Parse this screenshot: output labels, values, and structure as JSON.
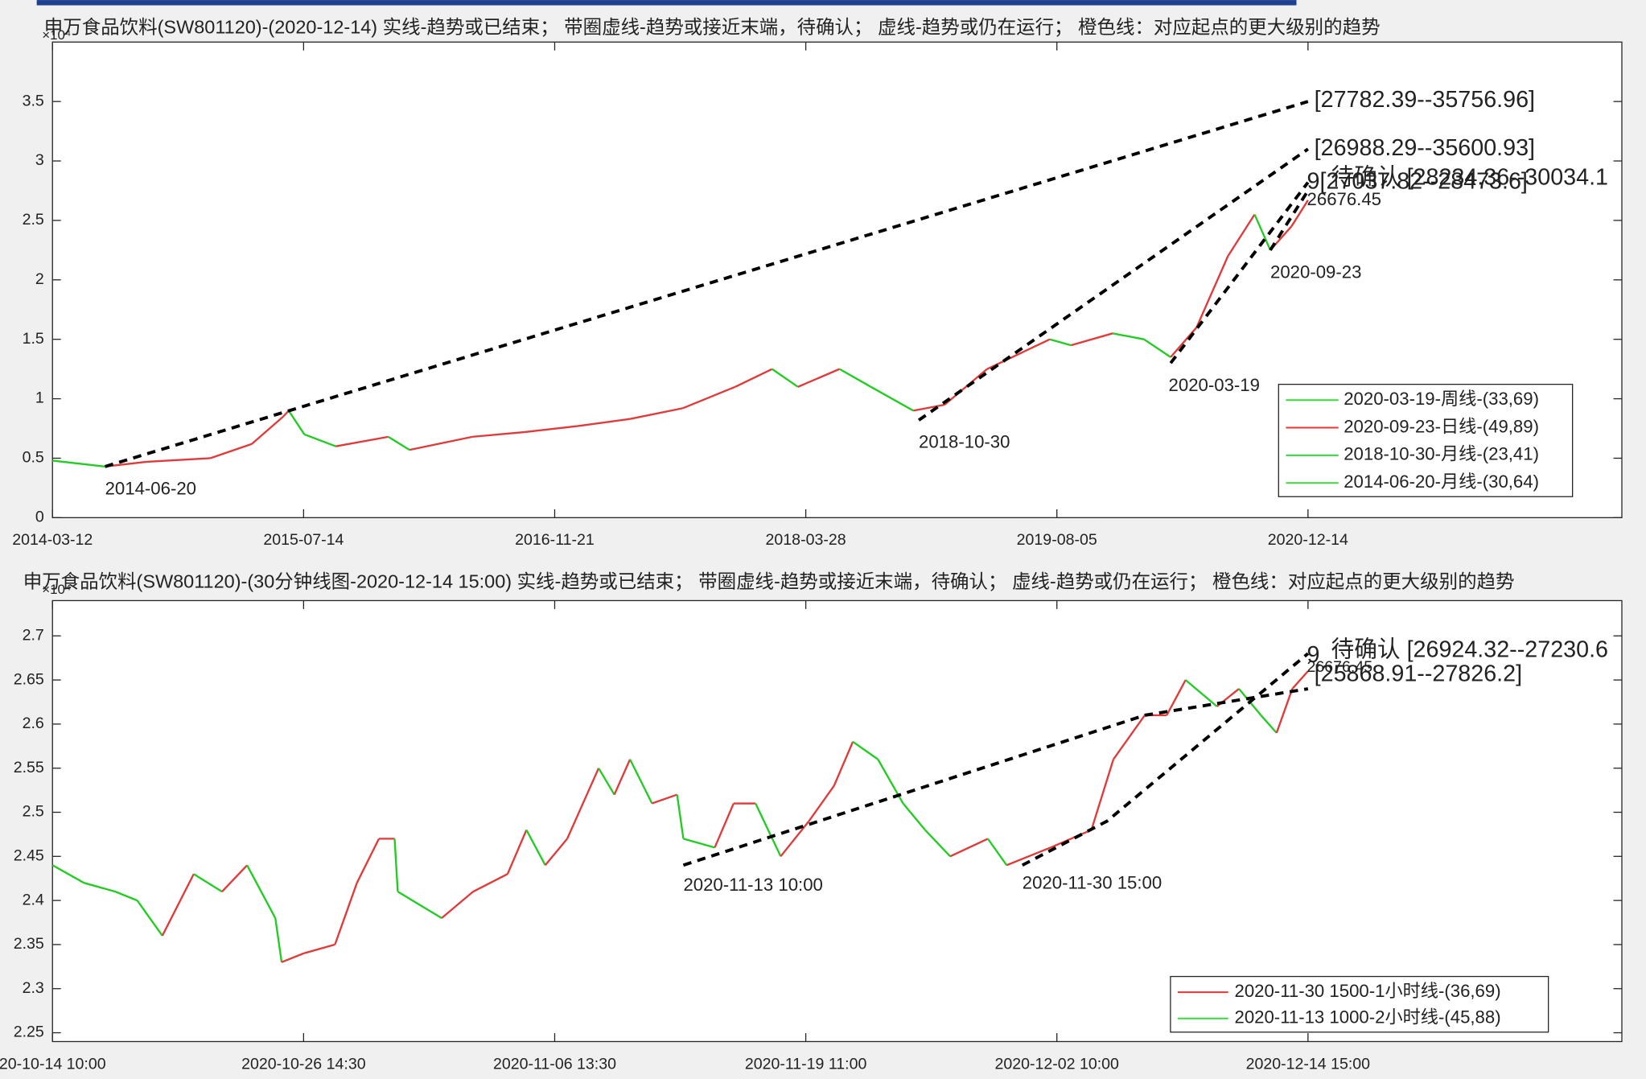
{
  "chart_data": [
    {
      "type": "line",
      "title": "申万食品饮料(SW801120)-(2020-12-14)  实线-趋势或已结束；  带圈虚线-趋势或接近末端，待确认；  虚线-趋势或仍在运行；  橙色线：对应起点的更大级别的趋势",
      "y_multiplier": "×10⁴",
      "color": "#e03a3a",
      "x": [
        0,
        67,
        120,
        201,
        254,
        294,
        301,
        321,
        361,
        428,
        455,
        535,
        602,
        669,
        736,
        803,
        870,
        917,
        950,
        1003,
        1043,
        1097,
        1137,
        1191,
        1271,
        1298,
        1351,
        1391,
        1425,
        1458,
        1498,
        1532,
        1552,
        1579,
        1600
      ],
      "values": [
        0.48,
        0.43,
        0.47,
        0.5,
        0.62,
        0.85,
        0.9,
        0.7,
        0.6,
        0.68,
        0.57,
        0.68,
        0.72,
        0.77,
        0.83,
        0.92,
        1.1,
        1.25,
        1.1,
        1.25,
        1.1,
        0.9,
        0.95,
        1.25,
        1.5,
        1.45,
        1.55,
        1.5,
        1.35,
        1.6,
        2.2,
        2.55,
        2.25,
        2.45,
        2.67
      ],
      "xlim": [
        0,
        2000
      ],
      "xticks": [
        {
          "value": 0,
          "label": "2014-03-12"
        },
        {
          "value": 320,
          "label": "2015-07-14"
        },
        {
          "value": 640,
          "label": "2016-11-21"
        },
        {
          "value": 960,
          "label": "2018-03-28"
        },
        {
          "value": 1280,
          "label": "2019-08-05"
        },
        {
          "value": 1600,
          "label": "2020-12-14"
        }
      ],
      "ylim": [
        0,
        4
      ],
      "yticks": [
        0,
        0.5,
        1,
        1.5,
        2,
        2.5,
        3,
        3.5
      ],
      "trend_lines": [
        {
          "name": "2020-03-19-周线-(33,69)",
          "color": "#33dd33",
          "label": "2020-03-19",
          "x": [
            1425,
            1600
          ],
          "y": [
            1.3,
            2.82
          ]
        },
        {
          "name": "2020-09-23-日线-(49,89)",
          "color": "#ee3333",
          "label": "2020-09-23",
          "x": [
            1552,
            1600
          ],
          "y": [
            2.25,
            2.75
          ]
        },
        {
          "name": "2018-10-30-月线-(23,41)",
          "color": "#33dd33",
          "label": "2018-10-30",
          "x": [
            1104,
            1600
          ],
          "y": [
            0.82,
            3.1
          ]
        },
        {
          "name": "2014-06-20-月线-(30,64)",
          "color": "#33dd33",
          "label": "2014-06-20",
          "x": [
            67,
            1600
          ],
          "y": [
            0.43,
            3.5
          ]
        }
      ],
      "annotations": [
        "[27782.39--35756.96]",
        "[26988.29--35600.93]",
        "9[27037.82--28473.6]",
        "待确认 [28234.36--30034.1",
        "26676.45"
      ]
    },
    {
      "type": "line",
      "title": "申万食品饮料(SW801120)-(30分钟线图-2020-12-14 15:00)  实线-趋势或已结束；  带圈虚线-趋势或接近末端，待确认；  虚线-趋势或仍在运行；  橙色线：对应起点的更大级别的趋势",
      "y_multiplier": "×10⁴",
      "color": "#e03a3a",
      "x": [
        0,
        10,
        20,
        27,
        35,
        45,
        54,
        62,
        71,
        73,
        80,
        90,
        97,
        104,
        109,
        110,
        124,
        134,
        145,
        151,
        157,
        164,
        174,
        179,
        184,
        191,
        199,
        201,
        211,
        217,
        224,
        232,
        241,
        249,
        255,
        263,
        271,
        278,
        286,
        298,
        304,
        318,
        331,
        338,
        348,
        355,
        361,
        371,
        378,
        385,
        390,
        395,
        400
      ],
      "values": [
        2.44,
        2.42,
        2.41,
        2.4,
        2.36,
        2.43,
        2.41,
        2.44,
        2.38,
        2.33,
        2.34,
        2.35,
        2.42,
        2.47,
        2.47,
        2.41,
        2.38,
        2.41,
        2.43,
        2.48,
        2.44,
        2.47,
        2.55,
        2.52,
        2.56,
        2.51,
        2.52,
        2.47,
        2.46,
        2.51,
        2.51,
        2.45,
        2.49,
        2.53,
        2.58,
        2.56,
        2.51,
        2.48,
        2.45,
        2.47,
        2.44,
        2.46,
        2.48,
        2.56,
        2.61,
        2.61,
        2.65,
        2.62,
        2.64,
        2.61,
        2.59,
        2.64,
        2.66
      ],
      "xlim": [
        0,
        500
      ],
      "xticks": [
        {
          "value": 0,
          "label": "20-10-14 10:00"
        },
        {
          "value": 80,
          "label": "2020-10-26 14:30"
        },
        {
          "value": 160,
          "label": "2020-11-06 13:30"
        },
        {
          "value": 240,
          "label": "2020-11-19 11:00"
        },
        {
          "value": 320,
          "label": "2020-12-02 10:00"
        },
        {
          "value": 400,
          "label": "2020-12-14 15:00"
        }
      ],
      "ylim": [
        2.24,
        2.74
      ],
      "yticks": [
        2.25,
        2.3,
        2.35,
        2.4,
        2.45,
        2.5,
        2.55,
        2.6,
        2.65,
        2.7
      ],
      "trend_lines": [
        {
          "name": "2020-11-30 1500-1小时线-(36,69)",
          "color": "#ee3333",
          "label": "2020-11-30 15:00",
          "x": [
            309,
            336,
            400
          ],
          "y": [
            2.44,
            2.49,
            2.68
          ]
        },
        {
          "name": "2020-11-13 1000-2小时线-(45,88)",
          "color": "#33dd33",
          "label": "2020-11-13 10:00",
          "x": [
            201,
            348,
            400
          ],
          "y": [
            2.44,
            2.61,
            2.64
          ]
        }
      ],
      "annotations": [
        "待确认 [26924.32--27230.6",
        "9",
        "26676.45",
        "[25868.91--27826.2]"
      ]
    }
  ]
}
